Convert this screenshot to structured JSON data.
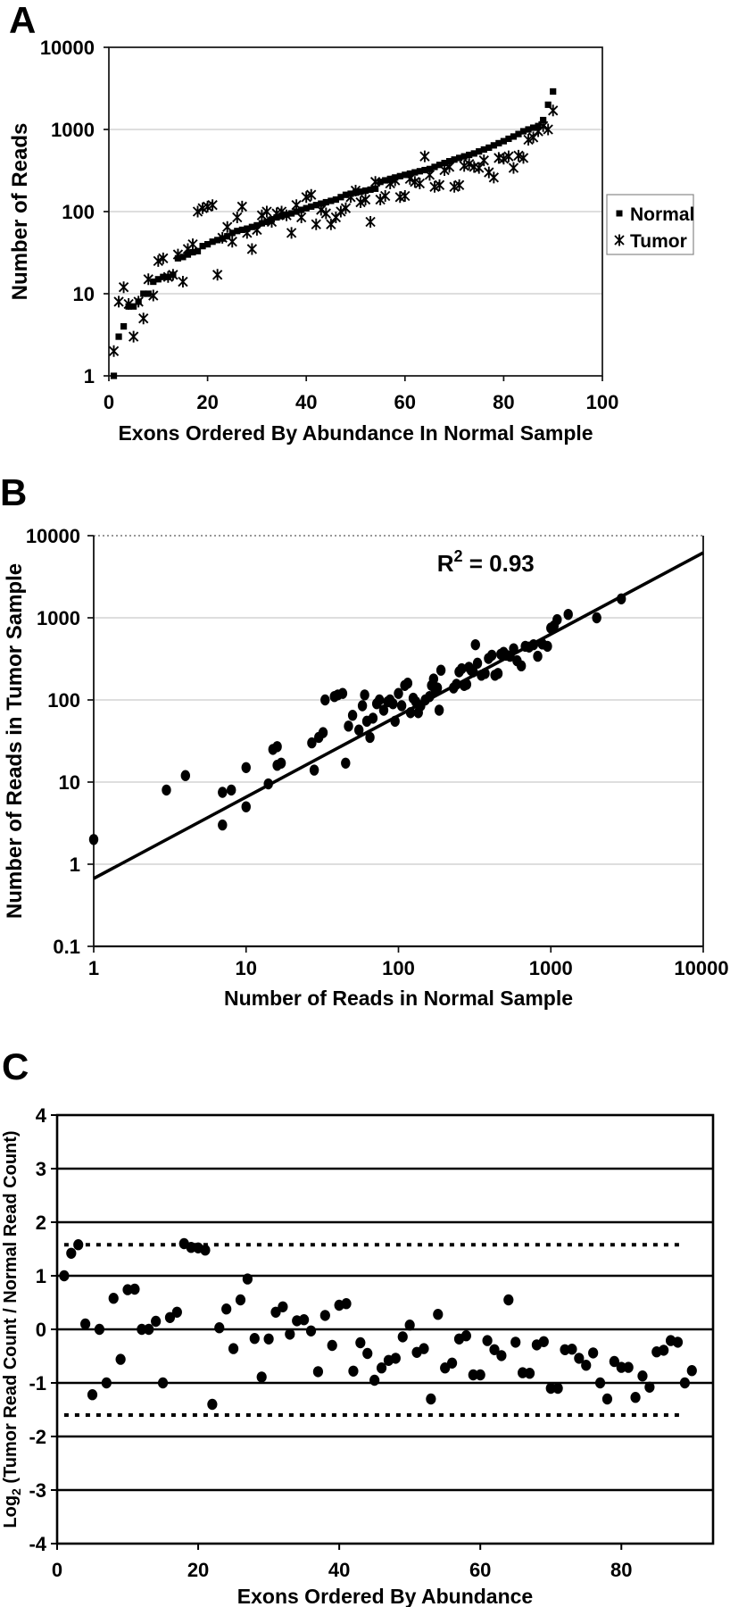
{
  "figure": {
    "panels": {
      "a": {
        "letter": "A"
      },
      "b": {
        "letter": "B"
      },
      "c": {
        "letter": "C"
      }
    },
    "colors": {
      "marker": "#000000",
      "axis": "#111111",
      "gridline": "#bdbdbd",
      "dotted_border": "#777777",
      "legend_border": "#888888",
      "background": "#ffffff"
    }
  },
  "chart_data": {
    "shared_series": {
      "exon_index": [
        1,
        2,
        3,
        4,
        5,
        6,
        7,
        8,
        9,
        10,
        11,
        12,
        13,
        14,
        15,
        16,
        17,
        18,
        19,
        20,
        21,
        22,
        23,
        24,
        25,
        26,
        27,
        28,
        29,
        30,
        31,
        32,
        33,
        34,
        35,
        36,
        37,
        38,
        39,
        40,
        41,
        42,
        43,
        44,
        45,
        46,
        47,
        48,
        49,
        50,
        51,
        52,
        53,
        54,
        55,
        56,
        57,
        58,
        59,
        60,
        61,
        62,
        63,
        64,
        65,
        66,
        67,
        68,
        69,
        70,
        71,
        72,
        73,
        74,
        75,
        76,
        77,
        78,
        79,
        80,
        81,
        82,
        83,
        84,
        85,
        86,
        87,
        88,
        89,
        90
      ],
      "normal_reads": [
        1,
        3,
        4,
        7,
        7,
        8,
        10,
        10,
        14,
        15,
        16,
        16,
        17,
        27,
        28,
        30,
        32,
        33,
        38,
        40,
        43,
        45,
        47,
        50,
        55,
        58,
        60,
        62,
        65,
        68,
        72,
        75,
        80,
        85,
        88,
        92,
        95,
        100,
        105,
        110,
        115,
        120,
        125,
        130,
        135,
        140,
        150,
        160,
        165,
        170,
        175,
        180,
        185,
        190,
        230,
        240,
        250,
        260,
        270,
        280,
        290,
        300,
        310,
        320,
        330,
        350,
        370,
        390,
        410,
        430,
        450,
        470,
        490,
        510,
        540,
        570,
        600,
        640,
        680,
        720,
        770,
        820,
        880,
        950,
        1000,
        1050,
        1100,
        1300,
        2000,
        2900
      ],
      "tumor_reads": [
        2,
        8,
        12,
        7.5,
        3,
        8,
        5,
        15,
        9.5,
        25,
        27,
        16,
        17,
        30,
        14,
        35,
        40,
        100,
        110,
        115,
        120,
        17,
        48,
        65,
        43,
        85,
        115,
        55,
        35,
        60,
        90,
        100,
        75,
        95,
        100,
        90,
        55,
        120,
        85,
        150,
        160,
        70,
        105,
        95,
        70,
        85,
        100,
        110,
        150,
        180,
        130,
        140,
        75,
        230,
        140,
        155,
        220,
        240,
        150,
        155,
        250,
        230,
        220,
        470,
        280,
        200,
        210,
        320,
        350,
        200,
        210,
        360,
        380,
        350,
        340,
        420,
        300,
        260,
        450,
        440,
        470,
        340,
        480,
        450,
        750,
        800,
        950,
        1100,
        1000,
        1700
      ],
      "log2_ratio": [
        1.0,
        1.42,
        1.58,
        0.1,
        -1.22,
        0,
        -1.0,
        0.58,
        -0.56,
        0.74,
        0.75,
        0,
        0,
        0.15,
        -1.0,
        0.22,
        0.32,
        1.6,
        1.53,
        1.52,
        1.48,
        -1.4,
        0.03,
        0.38,
        -0.36,
        0.55,
        0.94,
        -0.17,
        -0.89,
        -0.18,
        0.32,
        0.42,
        -0.09,
        0.16,
        0.18,
        -0.03,
        -0.79,
        0.26,
        -0.3,
        0.45,
        0.48,
        -0.78,
        -0.25,
        -0.45,
        -0.95,
        -0.72,
        -0.58,
        -0.54,
        -0.14,
        0.08,
        -0.43,
        -0.36,
        -1.3,
        0.28,
        -0.72,
        -0.63,
        -0.18,
        -0.12,
        -0.85,
        -0.85,
        -0.21,
        -0.38,
        -0.49,
        0.55,
        -0.24,
        -0.81,
        -0.82,
        -0.29,
        -0.23,
        -1.1,
        -1.1,
        -0.38,
        -0.37,
        -0.54,
        -0.67,
        -0.44,
        -1.0,
        -1.3,
        -0.6,
        -0.71,
        -0.71,
        -1.27,
        -0.87,
        -1.08,
        -0.42,
        -0.39,
        -0.21,
        -0.24,
        -1.0,
        -0.77
      ]
    },
    "charts": [
      {
        "panel": "A",
        "type": "scatter",
        "xlabel": "Exons Ordered By Abundance In Normal Sample",
        "ylabel": "Number of Reads",
        "x_scale": "linear",
        "y_scale": "log",
        "xlim": [
          0,
          100
        ],
        "ylim": [
          1,
          10000
        ],
        "x_ticks": [
          0,
          20,
          40,
          60,
          80,
          100
        ],
        "y_ticks": [
          1,
          10,
          100,
          1000,
          10000
        ],
        "gridlines": [
          10,
          100,
          1000
        ],
        "legend": {
          "position": "right-outside",
          "entries": [
            {
              "label": "Normal",
              "marker": "filled-square"
            },
            {
              "label": "Tumor",
              "marker": "asterisk"
            }
          ]
        },
        "series": [
          {
            "name": "Normal",
            "marker": "filled-square",
            "x_key": "exon_index",
            "y_key": "normal_reads"
          },
          {
            "name": "Tumor",
            "marker": "asterisk",
            "x_key": "exon_index",
            "y_key": "tumor_reads"
          }
        ]
      },
      {
        "panel": "B",
        "type": "scatter",
        "xlabel": "Number of Reads in Normal Sample",
        "ylabel": "Number of Reads in Tumor Sample",
        "x_scale": "log",
        "y_scale": "log",
        "xlim": [
          1,
          10000
        ],
        "ylim": [
          0.1,
          10000
        ],
        "x_ticks": [
          1,
          10,
          100,
          1000,
          10000
        ],
        "y_ticks": [
          0.1,
          1,
          10,
          100,
          1000,
          10000
        ],
        "gridlines": [
          1,
          10,
          100,
          1000
        ],
        "annotation": {
          "label": "R2 = 0.93",
          "base": "R",
          "sup": "2",
          "rest": " = 0.93",
          "r_squared": 0.93,
          "x": 690,
          "y": 4500
        },
        "trendline": {
          "x1": 1,
          "y1": 0.67,
          "x2": 10000,
          "y2": 6200
        },
        "series": [
          {
            "name": "Exons",
            "marker": "filled-circle",
            "x_key": "normal_reads",
            "y_key": "tumor_reads"
          }
        ]
      },
      {
        "panel": "C",
        "type": "scatter",
        "xlabel": "Exons Ordered By Abundance",
        "ylabel_parts": {
          "base": "Log",
          "sub": "2",
          "rest": " (Tumor Read Count / Normal Read Count)"
        },
        "x_scale": "linear",
        "y_scale": "linear",
        "xlim": [
          0,
          93
        ],
        "ylim": [
          -4,
          4
        ],
        "x_ticks": [
          0,
          20,
          40,
          60,
          80
        ],
        "y_ticks": [
          4,
          3,
          2,
          1,
          0,
          -1,
          -2,
          -3,
          -4
        ],
        "hlines": [
          -3,
          -2,
          -1,
          0,
          1,
          2,
          3
        ],
        "threshold_lines": {
          "upper": 1.58,
          "lower": -1.6,
          "x_start": 1,
          "x_end": 89,
          "style": "dotted"
        },
        "series": [
          {
            "name": "Log2 ratio",
            "marker": "filled-circle",
            "x_key": "exon_index",
            "y_key": "log2_ratio"
          }
        ]
      }
    ]
  }
}
